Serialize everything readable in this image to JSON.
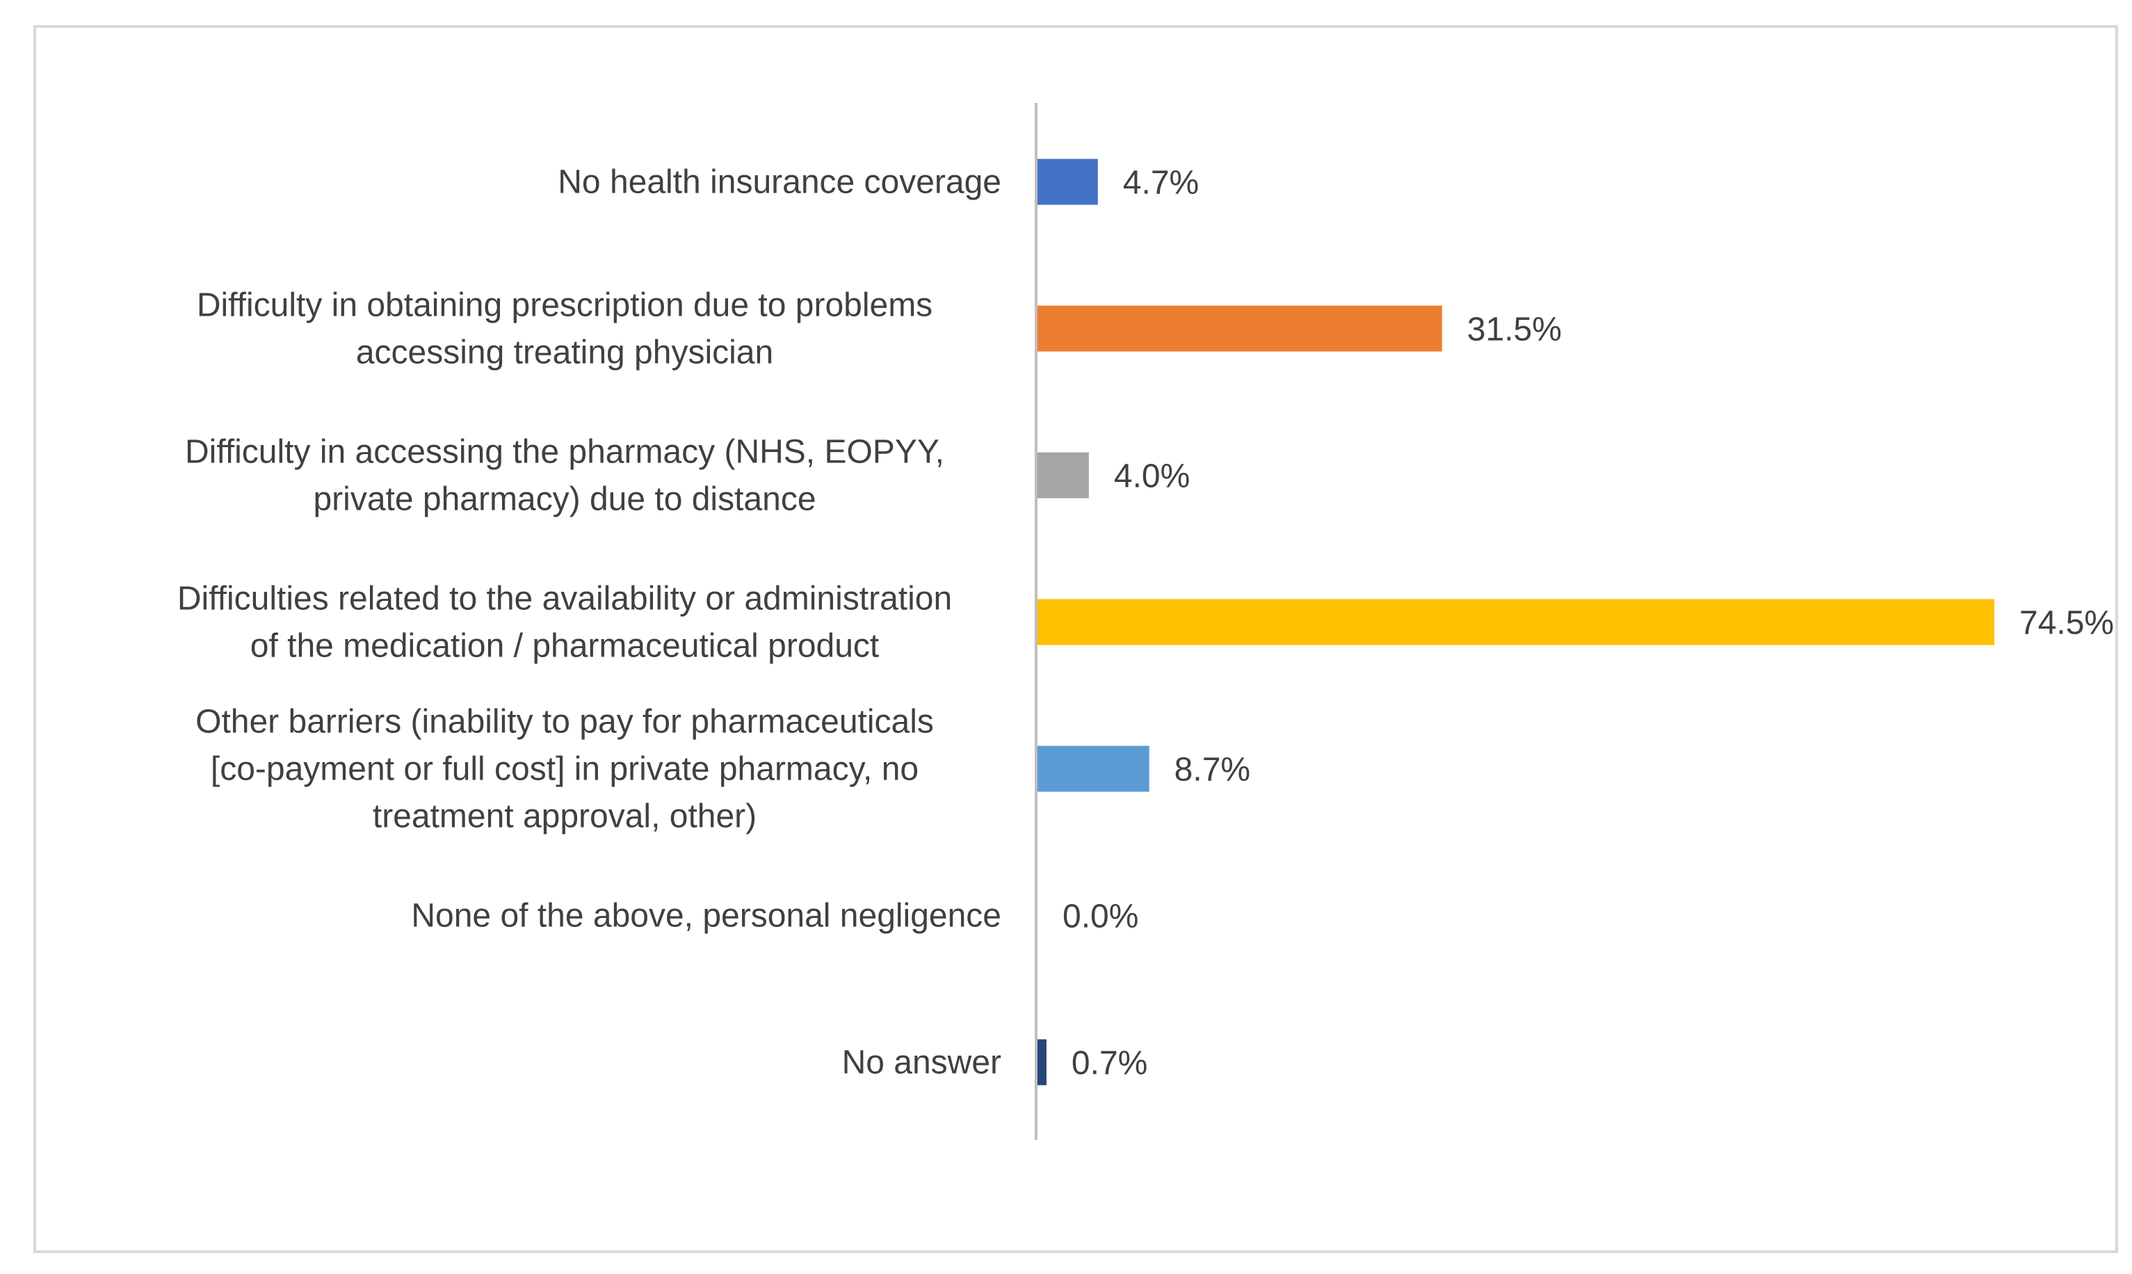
{
  "chart_data": {
    "type": "bar",
    "orientation": "horizontal",
    "title": "",
    "xlabel": "",
    "ylabel": "",
    "xlim": [
      0,
      80
    ],
    "grid": false,
    "legend": "none",
    "categories": [
      [
        "No health insurance coverage"
      ],
      [
        "Difficulty in obtaining prescription due to problems",
        "accessing treating physician"
      ],
      [
        "Difficulty in accessing the pharmacy (NHS, EOPYY,",
        "private pharmacy) due to distance"
      ],
      [
        "Difficulties related to the availability or administration",
        "of the medication / pharmaceutical product"
      ],
      [
        "Other barriers (inability to pay for pharmaceuticals",
        "[co-payment or full cost] in private pharmacy, no",
        "treatment approval, other)"
      ],
      [
        "None of the above, personal negligence"
      ],
      [
        "No answer"
      ]
    ],
    "values": [
      4.7,
      31.5,
      4.0,
      74.5,
      8.7,
      0.0,
      0.7
    ],
    "value_labels": [
      "4.7%",
      "31.5%",
      "4.0%",
      "74.5%",
      "8.7%",
      "0.0%",
      "0.7%"
    ],
    "bar_colors": [
      "#4472c4",
      "#ed7d31",
      "#a5a5a5",
      "#ffc000",
      "#5b9bd5",
      "#70ad47",
      "#264478"
    ]
  },
  "style": {
    "axis_color": "#bfbfbf",
    "text_color": "#404040",
    "frame_color": "#d9d9d9"
  }
}
